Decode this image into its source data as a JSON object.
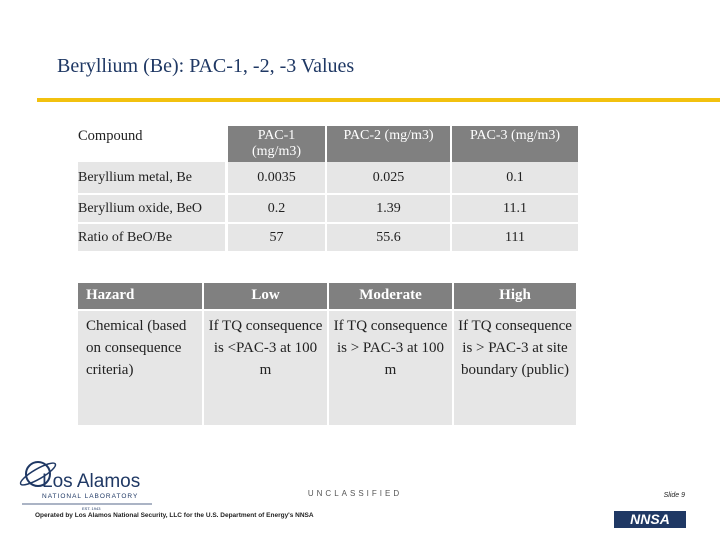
{
  "header": {
    "title": "Beryllium (Be): PAC-1, -2, -3 Values"
  },
  "table1": {
    "header": [
      "Compound",
      "PAC-1 (mg/m3)",
      "PAC-2 (mg/m3)",
      "PAC-3 (mg/m3)"
    ],
    "rows": [
      [
        "Beryllium metal, Be",
        "0.0035",
        "0.025",
        "0.1"
      ],
      [
        "Beryllium oxide, BeO",
        "0.2",
        "1.39",
        "11.1"
      ],
      [
        "Ratio of BeO/Be",
        "57",
        "55.6",
        "111"
      ]
    ]
  },
  "table2": {
    "header": [
      "Hazard",
      "Low",
      "Moderate",
      "High"
    ],
    "rows": [
      [
        "Chemical (based on consequence criteria)",
        "If TQ consequence is <PAC-3 at 100 m",
        "If TQ consequence is > PAC-3 at 100 m",
        "If TQ consequence is > PAC-3 at site boundary (public)"
      ]
    ]
  },
  "footer": {
    "logo_name": "Los Alamos",
    "logo_sub": "NATIONAL LABORATORY",
    "logo_est": "EST. 1943",
    "classification": "UNCLASSIFIED",
    "operator": "Operated by Los Alamos National Security, LLC for the U.S. Department of Energy's NNSA",
    "slide": "Slide 9",
    "agency": "NNSA"
  }
}
